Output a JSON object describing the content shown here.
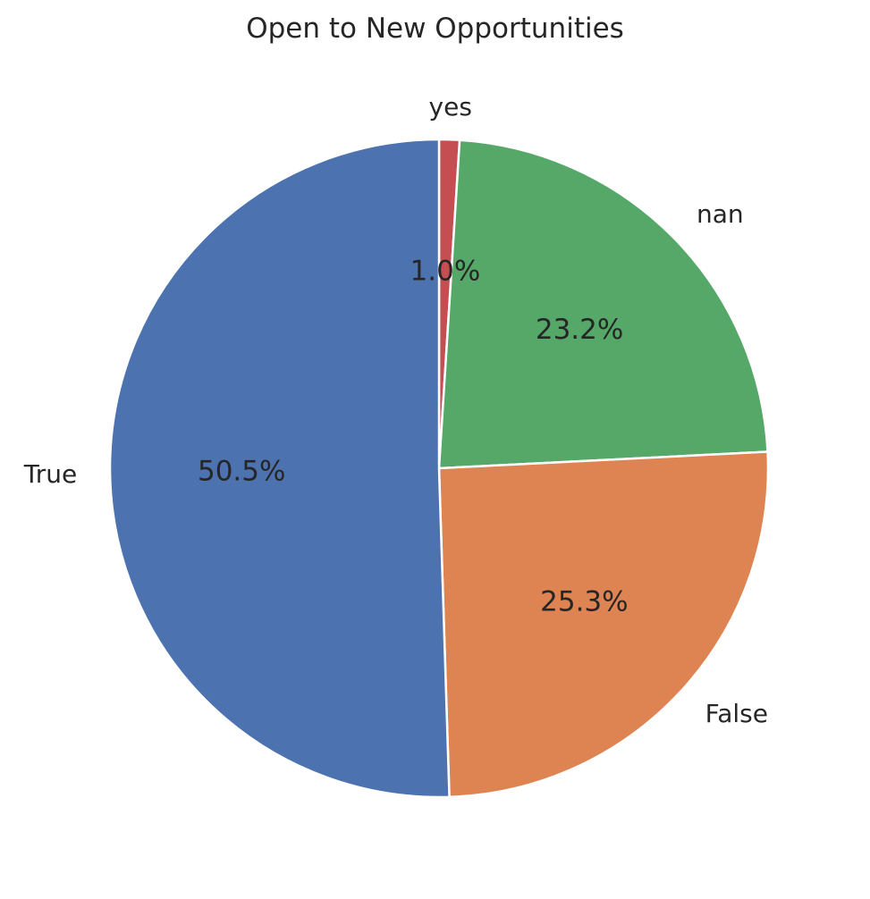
{
  "chart_data": {
    "type": "pie",
    "title": "Open to New Opportunities",
    "start_angle_deg": 90,
    "direction": "clockwise",
    "slices": [
      {
        "label": "yes",
        "value": 1.0,
        "pct_label": "1.0%",
        "color": "#c44e52"
      },
      {
        "label": "nan",
        "value": 23.2,
        "pct_label": "23.2%",
        "color": "#55a868"
      },
      {
        "label": "False",
        "value": 25.3,
        "pct_label": "25.3%",
        "color": "#dd8452"
      },
      {
        "label": "True",
        "value": 50.5,
        "pct_label": "50.5%",
        "color": "#4c72b0"
      }
    ],
    "edge_color": "#ffffff",
    "legend": "none"
  }
}
